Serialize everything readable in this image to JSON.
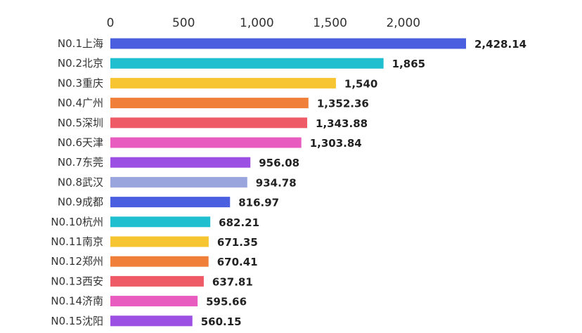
{
  "chart_data": {
    "type": "bar",
    "orientation": "horizontal",
    "title": "",
    "xlabel": "",
    "ylabel": "",
    "xlim": [
      0,
      2500
    ],
    "x_ticks": [
      0,
      500,
      1000,
      1500,
      2000
    ],
    "x_tick_labels": [
      "0",
      "500",
      "1,000",
      "1,500",
      "2,000"
    ],
    "axis_position": "top",
    "grid": false,
    "legend": "none",
    "categories": [
      "N0.1上海",
      "N0.2北京",
      "N0.3重庆",
      "N0.4广州",
      "N0.5深圳",
      "N0.6天津",
      "N0.7东莞",
      "N0.8武汉",
      "N0.9成都",
      "N0.10杭州",
      "N0.11南京",
      "N0.12郑州",
      "N0.13西安",
      "N0.14济南",
      "N0.15沈阳"
    ],
    "values": [
      2428.14,
      1865,
      1540,
      1352.36,
      1343.88,
      1303.84,
      956.08,
      934.78,
      816.97,
      682.21,
      671.35,
      670.41,
      637.81,
      595.66,
      560.15
    ],
    "value_labels": [
      "2,428.14",
      "1,865",
      "1,540",
      "1,352.36",
      "1,343.88",
      "1,303.84",
      "956.08",
      "934.78",
      "816.97",
      "682.21",
      "671.35",
      "670.41",
      "637.81",
      "595.66",
      "560.15"
    ],
    "colors": [
      "#4a5fdf",
      "#1fbfd0",
      "#f7c531",
      "#f07f3a",
      "#ef5a67",
      "#e85cc0",
      "#9b4fe3",
      "#9aa4dd",
      "#4a5fdf",
      "#1fbfd0",
      "#f7c531",
      "#f07f3a",
      "#ef5a67",
      "#e85cc0",
      "#9b4fe3"
    ]
  }
}
